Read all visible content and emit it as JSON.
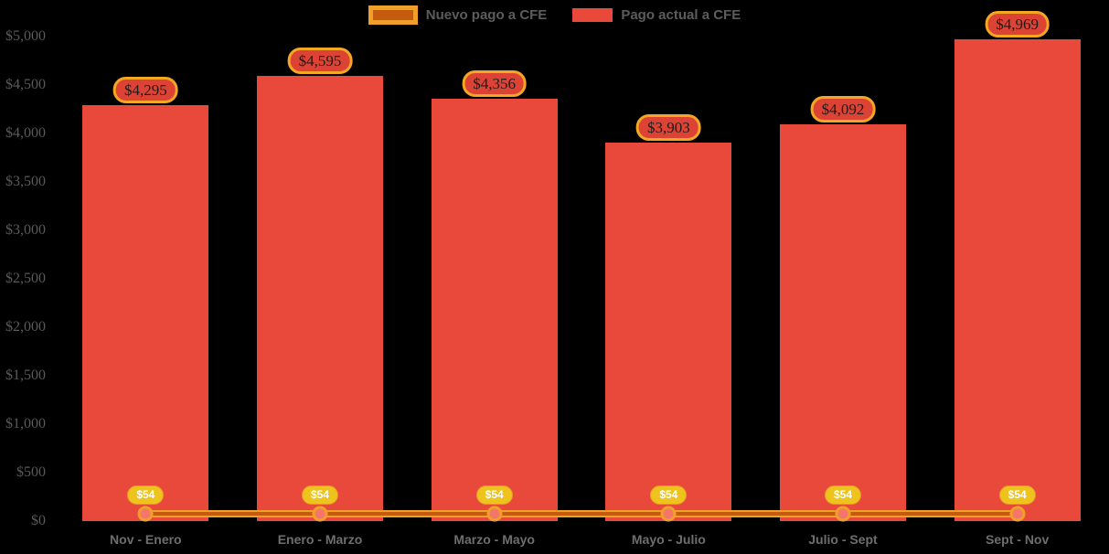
{
  "chart_data": {
    "type": "bar",
    "categories": [
      "Nov - Enero",
      "Enero - Marzo",
      "Marzo - Mayo",
      "Mayo - Julio",
      "Julio - Sept",
      "Sept - Nov"
    ],
    "series": [
      {
        "name": "Nuevo pago a CFE",
        "type": "line",
        "values": [
          54,
          54,
          54,
          54,
          54,
          54
        ],
        "labels": [
          "$54",
          "$54",
          "$54",
          "$54",
          "$54",
          "$54"
        ]
      },
      {
        "name": "Pago actual a CFE",
        "type": "bar",
        "values": [
          4295,
          4595,
          4356,
          3903,
          4092,
          4969
        ],
        "labels": [
          "$4,295",
          "$4,595",
          "$4,356",
          "$3,903",
          "$4,092",
          "$4,969"
        ]
      }
    ],
    "title": "",
    "xlabel": "",
    "ylabel": "",
    "ylim": [
      0,
      5000
    ],
    "ytick_step": 500,
    "ytick_labels": [
      "$0",
      "$500",
      "$1,000",
      "$1,500",
      "$2,000",
      "$2,500",
      "$3,000",
      "$3,500",
      "$4,000",
      "$4,500",
      "$5,000"
    ],
    "grid": false,
    "legend_position": "top-center"
  },
  "colors": {
    "background": "#000000",
    "bar_fill": "#E8493A",
    "value_pill_fill": "#DD4334",
    "accent_orange": "#F0A02A",
    "line_core": "#C45B0F",
    "marker_fill": "#F4766A",
    "gold_pill": "#EEC31E",
    "value_text": "#1C1C1C",
    "gold_text": "#FFFFFF",
    "y_axis_text": "#5A5A5A",
    "x_axis_text": "#6E6E6E",
    "legend_text": "#5C5C5C"
  }
}
